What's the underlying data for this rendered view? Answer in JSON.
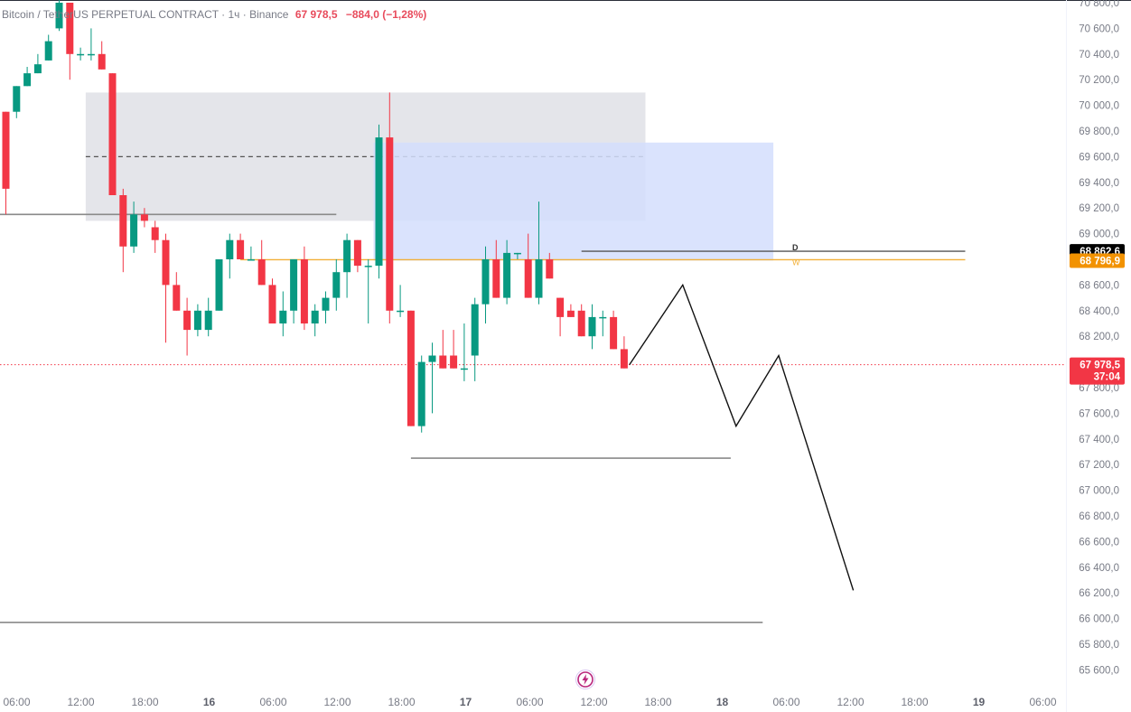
{
  "header": {
    "symbol": "Bitcoin / TetherUS PERPETUAL CONTRACT · 1ч · Binance",
    "last_price": "67 978,5",
    "change": "−884,0 (−1,28%)"
  },
  "price_labels": {
    "level_d": "68 862,6",
    "level_w": "68 796,9",
    "current": "67 978,5",
    "countdown": "37:04",
    "tag_d": "D",
    "tag_w": "W"
  },
  "colors": {
    "up": "#089981",
    "down": "#f23645",
    "grey_zone": "#e4e5ea",
    "blue_zone": "#d3defd",
    "level_w": "#f2b038",
    "level_d": "#555555",
    "current_price": "#f23645",
    "axis_text": "#787b86"
  },
  "chart_data": {
    "type": "candlestick",
    "timeframe": "1h",
    "y_ticks": [
      70800,
      70600,
      70400,
      70200,
      70000,
      69800,
      69600,
      69400,
      69200,
      69000,
      68800,
      68600,
      68400,
      68200,
      68000,
      67800,
      67600,
      67400,
      67200,
      67000,
      66800,
      66600,
      66400,
      66200,
      66000,
      65800,
      65600
    ],
    "y_tick_labels": [
      "70 800,0",
      "70 600,0",
      "70 400,0",
      "70 200,0",
      "70 000,0",
      "69 800,0",
      "69 600,0",
      "69 400,0",
      "69 200,0",
      "69 000,0",
      "68 800,0",
      "68 600,0",
      "68 400,0",
      "68 200,0",
      "68 000,0",
      "67 800,0",
      "67 600,0",
      "67 400,0",
      "67 200,0",
      "67 000,0",
      "66 800,0",
      "66 600,0",
      "66 400,0",
      "66 200,0",
      "66 000,0",
      "65 800,0",
      "65 600,0"
    ],
    "x_tick_labels": [
      "06:00",
      "12:00",
      "18:00",
      "16",
      "06:00",
      "12:00",
      "18:00",
      "17",
      "06:00",
      "12:00",
      "18:00",
      "18",
      "06:00",
      "12:00",
      "18:00",
      "19",
      "06:00"
    ],
    "candles": [
      [
        69950,
        69150,
        69350,
        69950
      ],
      [
        69950,
        69900,
        70150,
        70150
      ],
      [
        70150,
        70150,
        70250,
        70300
      ],
      [
        70250,
        70250,
        70320,
        70400
      ],
      [
        70350,
        70350,
        70500,
        70550
      ],
      [
        70600,
        70580,
        70800,
        70850
      ],
      [
        70800,
        70200,
        70400,
        70800
      ],
      [
        70400,
        70350,
        70400,
        70450
      ],
      [
        70400,
        70350,
        70400,
        70600
      ],
      [
        70400,
        70280,
        70280,
        70500
      ],
      [
        70250,
        70200,
        69300,
        70250
      ],
      [
        69300,
        68700,
        68900,
        69350
      ],
      [
        68900,
        68850,
        69150,
        69250
      ],
      [
        69150,
        69050,
        69100,
        69200
      ],
      [
        69050,
        68850,
        68950,
        69100
      ],
      [
        68950,
        68150,
        68600,
        69000
      ],
      [
        68600,
        68450,
        68400,
        68700
      ],
      [
        68400,
        68050,
        68250,
        68500
      ],
      [
        68250,
        68200,
        68400,
        68450
      ],
      [
        68250,
        68200,
        68400,
        68500
      ],
      [
        68400,
        68400,
        68800,
        68800
      ],
      [
        68800,
        68650,
        68950,
        69000
      ],
      [
        68950,
        68800,
        68800,
        69000
      ],
      [
        68800,
        68800,
        68800,
        68900
      ],
      [
        68800,
        68600,
        68600,
        68950
      ],
      [
        68600,
        68400,
        68300,
        68650
      ],
      [
        68300,
        68200,
        68400,
        68550
      ],
      [
        68400,
        68300,
        68800,
        68800
      ],
      [
        68800,
        68250,
        68300,
        68900
      ],
      [
        68300,
        68200,
        68400,
        68450
      ],
      [
        68400,
        68300,
        68500,
        68550
      ],
      [
        68500,
        68400,
        68700,
        68800
      ],
      [
        68700,
        68500,
        68950,
        69000
      ],
      [
        68950,
        68700,
        68750,
        68950
      ],
      [
        68750,
        68300,
        68750,
        68800
      ],
      [
        68750,
        68650,
        69750,
        69850
      ],
      [
        69750,
        68300,
        68400,
        70100
      ],
      [
        68400,
        68350,
        68400,
        68600
      ],
      [
        68400,
        67500,
        67500,
        68400
      ],
      [
        67500,
        67450,
        68000,
        68050
      ],
      [
        68000,
        67600,
        68050,
        68150
      ],
      [
        68050,
        67950,
        67950,
        68250
      ],
      [
        68050,
        68000,
        67950,
        68250
      ],
      [
        67950,
        67850,
        67950,
        68300
      ],
      [
        68050,
        67850,
        68450,
        68500
      ],
      [
        68450,
        68300,
        68800,
        68900
      ],
      [
        68800,
        68600,
        68500,
        68950
      ],
      [
        68500,
        68450,
        68850,
        68950
      ],
      [
        68850,
        68800,
        68850,
        68800
      ],
      [
        68800,
        68850,
        68500,
        69000
      ],
      [
        68500,
        68450,
        68800,
        69250
      ],
      [
        68800,
        68700,
        68650,
        68850
      ],
      [
        68500,
        68200,
        68350,
        68400
      ],
      [
        68400,
        68350,
        68350,
        68450
      ],
      [
        68400,
        68250,
        68200,
        68450
      ],
      [
        68200,
        68100,
        68350,
        68450
      ],
      [
        68350,
        68200,
        68350,
        68400
      ],
      [
        68350,
        68250,
        68100,
        68400
      ],
      [
        68100,
        67950,
        67950,
        68200
      ]
    ],
    "zones": [
      {
        "name": "grey-zone",
        "from_bar": 8,
        "to_bar": 60,
        "top": 70100,
        "bottom": 69100,
        "midline": 69600
      },
      {
        "name": "blue-zone",
        "from_bar": 35,
        "to_bar": 72,
        "top": 69710,
        "bottom": 68790
      }
    ],
    "levels": [
      {
        "name": "D",
        "price": 68862.6,
        "from_bar": 54,
        "to_bar": 90
      },
      {
        "name": "W",
        "price": 68796.9,
        "from_bar": 22,
        "to_bar": 90
      },
      {
        "name": "support-a",
        "price": 69150,
        "from_bar": -1,
        "to_bar": 31
      },
      {
        "name": "support-b",
        "price": 67250,
        "from_bar": 38,
        "to_bar": 68
      },
      {
        "name": "support-c",
        "price": 65970,
        "from_bar": -1,
        "to_bar": 71
      }
    ],
    "current_price": 67978.5,
    "projection": [
      [
        58.5,
        67978.5
      ],
      [
        63.5,
        68600
      ],
      [
        68.5,
        67500
      ],
      [
        72.5,
        68050
      ],
      [
        79.5,
        66220
      ]
    ]
  }
}
